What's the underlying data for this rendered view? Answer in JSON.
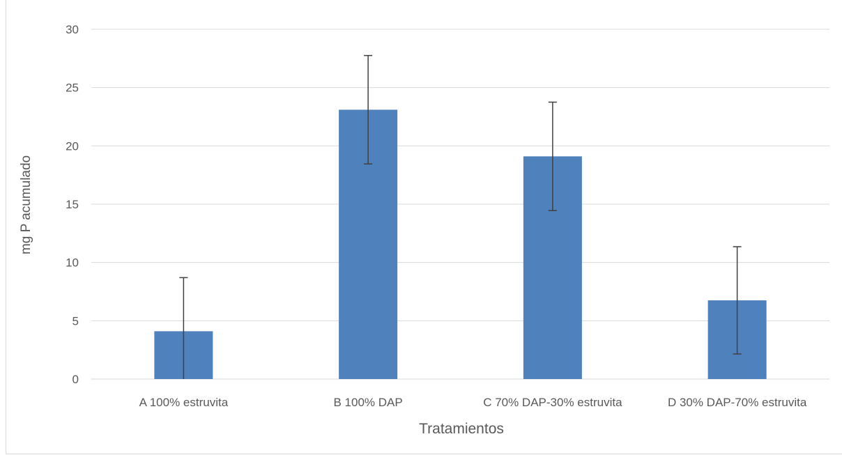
{
  "chart_data": {
    "type": "bar",
    "xlabel": "Tratamientos",
    "ylabel": "mg P acumulado",
    "ylim": [
      0,
      30
    ],
    "yticks": [
      0,
      5,
      10,
      15,
      20,
      25,
      30
    ],
    "grid": true,
    "categories": [
      "A 100% estruvita",
      "B 100% DAP",
      "C 70% DAP-30% estruvita",
      "D 30% DAP-70% estruvita"
    ],
    "series": [
      {
        "values": [
          4.1,
          23.1,
          19.1,
          6.75
        ],
        "error": [
          4.6,
          4.65,
          4.65,
          4.6
        ],
        "color": "#4f81bd"
      }
    ],
    "error_bar_color": "#404040",
    "grid_color": "#d9d9d9"
  }
}
